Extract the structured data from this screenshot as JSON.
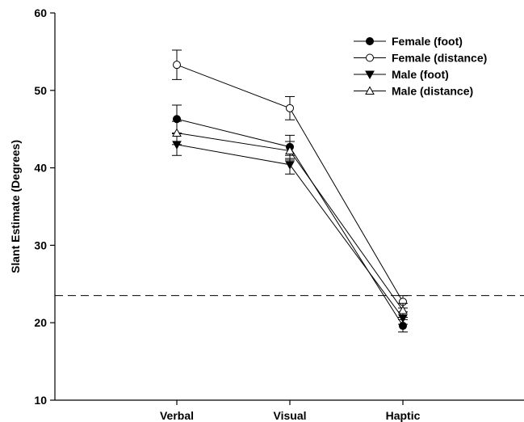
{
  "chart_data": {
    "type": "line",
    "title": "",
    "xlabel": "",
    "ylabel": "Slant Estimate (Degrees)",
    "categories": [
      "Verbal",
      "Visual",
      "Haptic"
    ],
    "ylim": [
      10,
      60
    ],
    "yticks": [
      10,
      20,
      30,
      40,
      50,
      60
    ],
    "reference_line": {
      "y": 23.5,
      "style": "dashed"
    },
    "grid": false,
    "legend_position": "top-right",
    "series": [
      {
        "name": "Female (foot)",
        "marker": "filled-circle",
        "values": [
          46.3,
          42.7,
          19.6
        ],
        "errors": [
          1.8,
          1.5,
          0.8
        ]
      },
      {
        "name": "Female (distance)",
        "marker": "open-circle",
        "values": [
          53.3,
          47.7,
          22.7
        ],
        "errors": [
          1.9,
          1.5,
          0.8
        ]
      },
      {
        "name": "Male (foot)",
        "marker": "filled-triangle-down",
        "values": [
          43.0,
          40.4,
          20.6
        ],
        "errors": [
          1.4,
          1.2,
          0.8
        ]
      },
      {
        "name": "Male (distance)",
        "marker": "open-triangle-up",
        "values": [
          44.5,
          42.2,
          21.6
        ],
        "errors": [
          1.5,
          1.2,
          0.9
        ]
      }
    ]
  }
}
